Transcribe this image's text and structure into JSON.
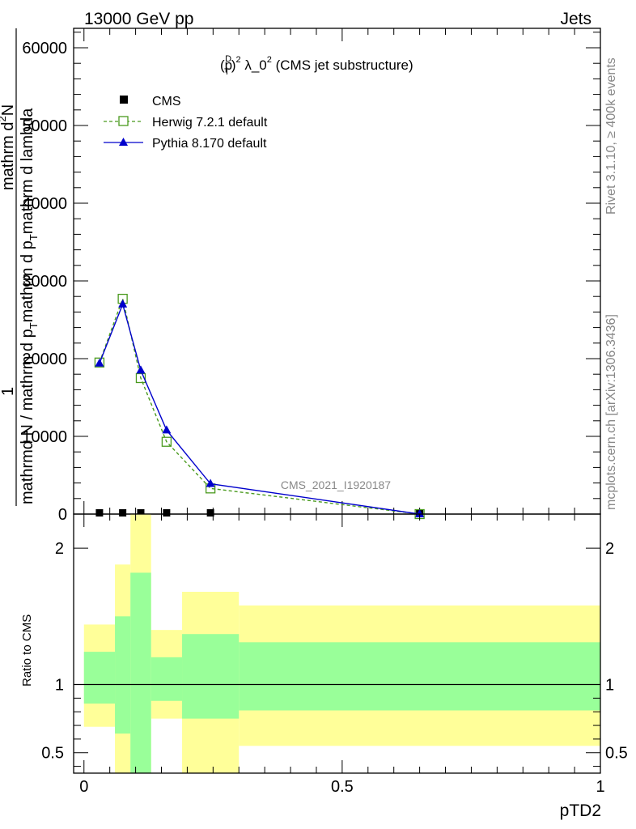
{
  "header": {
    "left": "13000 GeV pp",
    "right": "Jets"
  },
  "side": {
    "rivet": "Rivet 3.1.10, ≥ 400k events",
    "mcplots": "mcplots.cern.ch [arXiv:1306.3436]"
  },
  "watermark": "CMS_2021_I1920187",
  "chart_data": [
    {
      "type": "line",
      "title_parts": {
        "p": "(p",
        "sup_d": "D",
        "sub_t": "T",
        "sup_2": "2",
        "rest": " λ_0",
        "sup_2b": "2",
        "tail": " (CMS jet substructure)"
      },
      "ylabel_parts": {
        "num": "1",
        "den": "mathrmd N / mathrm d p",
        "den_sub": "T",
        "den_tail": "mathrm d p",
        "den_sub2": "T",
        "den_tail2": "mathrm d lambda",
        "top": "mathrm d",
        "top_sup": "2",
        "top_tail": "N"
      },
      "ylim": [
        0,
        62500
      ],
      "yticks": [
        0,
        10000,
        20000,
        30000,
        40000,
        50000,
        60000
      ],
      "ytick_labels": [
        "0",
        "10000",
        "20000",
        "30000",
        "40000",
        "50000",
        "60000"
      ],
      "xlim": [
        -0.02,
        1.0
      ],
      "legend_position": "top-left",
      "series": [
        {
          "name": "CMS",
          "marker": "filled-square",
          "color": "#000000",
          "x": [
            0.03,
            0.075,
            0.11,
            0.16,
            0.245,
            0.65
          ],
          "y": [
            0,
            0,
            0,
            0,
            0,
            0
          ]
        },
        {
          "name": "Herwig 7.2.1 default",
          "marker": "open-square",
          "color": "#4a9a1e",
          "dash": true,
          "x": [
            0.03,
            0.075,
            0.11,
            0.16,
            0.245,
            0.65
          ],
          "y": [
            19500,
            27700,
            17500,
            9300,
            3300,
            0
          ]
        },
        {
          "name": "Pythia 8.170 default",
          "marker": "filled-triangle",
          "color": "#0000cc",
          "dash": false,
          "x": [
            0.03,
            0.075,
            0.11,
            0.16,
            0.245,
            0.65
          ],
          "y": [
            19400,
            27000,
            18500,
            10800,
            3900,
            0
          ]
        }
      ]
    },
    {
      "type": "area",
      "ylabel": "Ratio to CMS",
      "xlabel": "pTD2",
      "ylim": [
        0.35,
        2.25
      ],
      "xlim": [
        -0.02,
        1.0
      ],
      "xticks": [
        0,
        0.5,
        1
      ],
      "xtick_labels": [
        "0",
        "0.5",
        "1"
      ],
      "yticks": [
        0.5,
        1,
        2
      ],
      "ytick_labels": [
        "0.5",
        "1",
        "2"
      ],
      "bands": [
        {
          "x0": 0.0,
          "x1": 0.06,
          "g_lo": 0.86,
          "g_hi": 1.24,
          "y_lo": 0.69,
          "y_hi": 1.44
        },
        {
          "x0": 0.06,
          "x1": 0.09,
          "g_lo": 0.64,
          "g_hi": 1.5,
          "y_lo": 0.35,
          "y_hi": 1.88
        },
        {
          "x0": 0.09,
          "x1": 0.13,
          "g_lo": 0.35,
          "g_hi": 1.82,
          "y_lo": 0.35,
          "y_hi": 2.25
        },
        {
          "x0": 0.13,
          "x1": 0.19,
          "g_lo": 0.88,
          "g_hi": 1.2,
          "y_lo": 0.75,
          "y_hi": 1.4
        },
        {
          "x0": 0.19,
          "x1": 0.3,
          "g_lo": 0.75,
          "g_hi": 1.37,
          "y_lo": 0.35,
          "y_hi": 1.68
        },
        {
          "x0": 0.3,
          "x1": 1.0,
          "g_lo": 0.81,
          "g_hi": 1.31,
          "y_lo": 0.55,
          "y_hi": 1.58
        }
      ],
      "reference": 1
    }
  ]
}
